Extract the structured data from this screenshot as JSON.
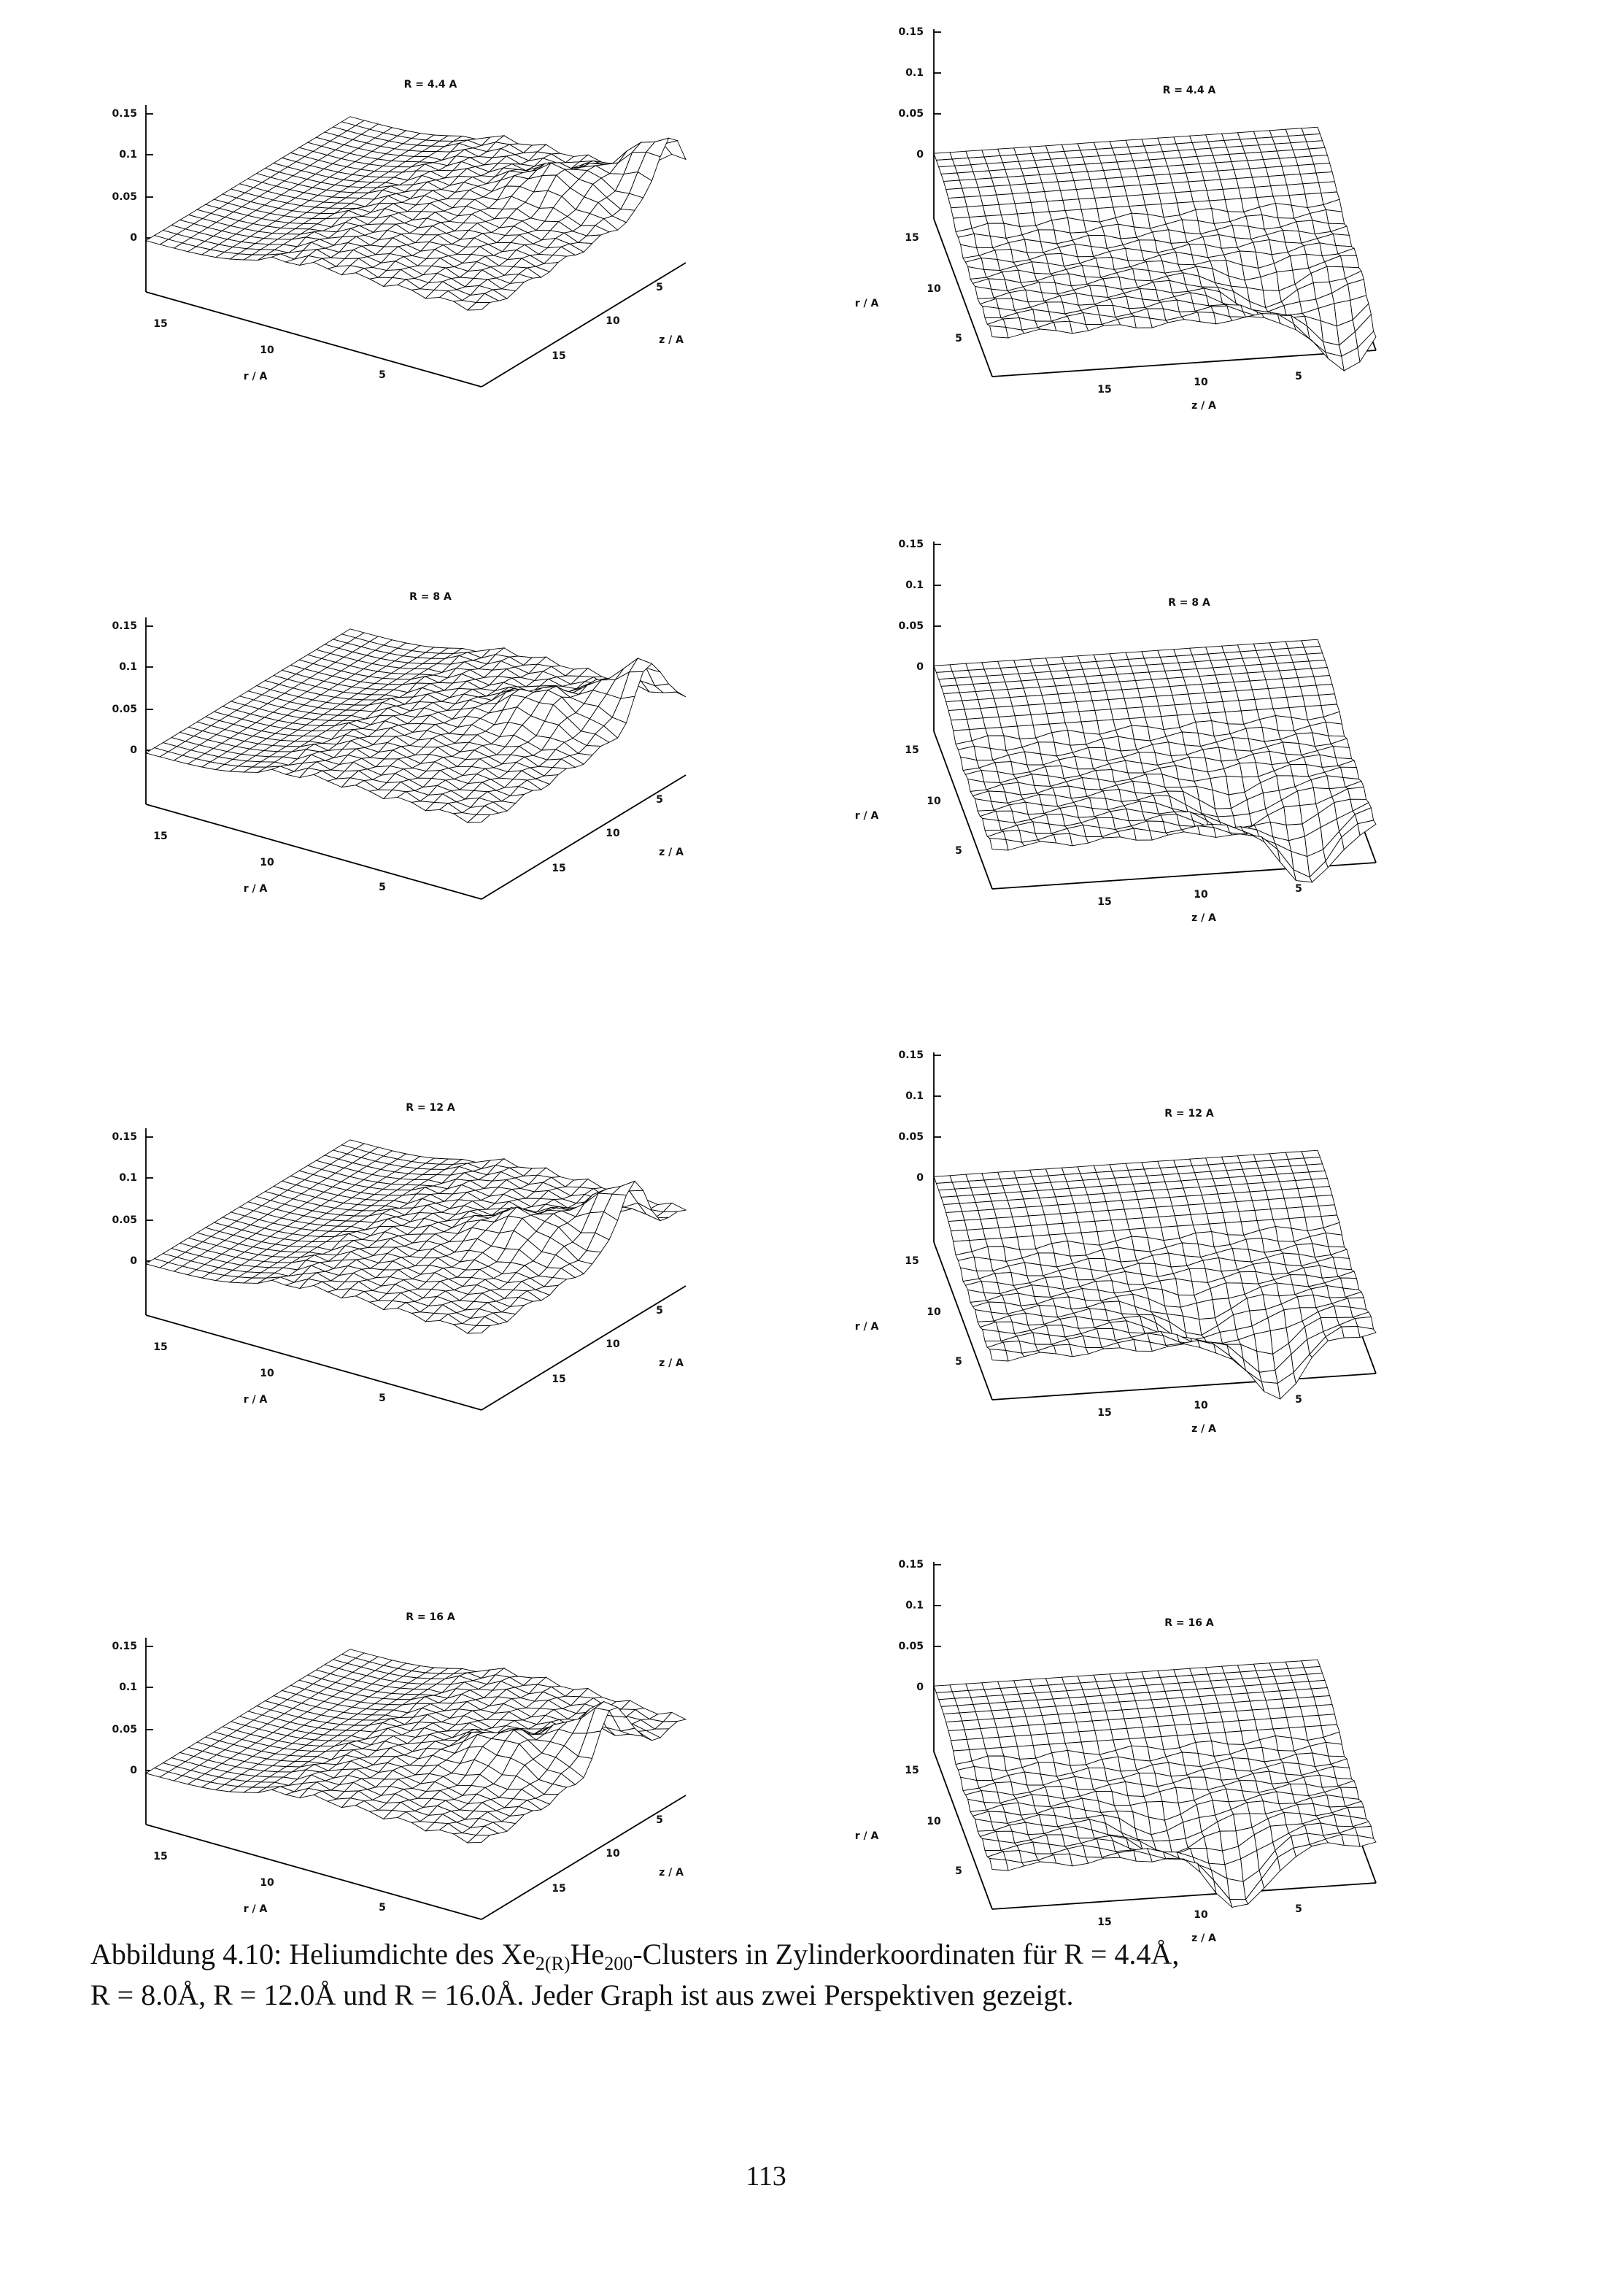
{
  "figure": {
    "rows": [
      {
        "left": {
          "title": "R = 4.4 A",
          "height_ticks": [
            "0.15",
            "0.1",
            "0.05",
            "0"
          ],
          "r_ticks": [
            "15",
            "10",
            "5"
          ],
          "r_label": "r / A",
          "z_ticks": [
            "5",
            "10",
            "15"
          ],
          "z_label": "z / A"
        },
        "right": {
          "title": "R = 4.4 A",
          "height_ticks": [
            "0.15",
            "0.1",
            "0.05",
            "0"
          ],
          "r_ticks": [
            "15",
            "10",
            "5"
          ],
          "r_label": "r / A",
          "z_ticks": [
            "15",
            "10",
            "5"
          ],
          "z_label": "z / A"
        }
      },
      {
        "left": {
          "title": "R = 8 A",
          "height_ticks": [
            "0.15",
            "0.1",
            "0.05",
            "0"
          ],
          "r_ticks": [
            "15",
            "10",
            "5"
          ],
          "r_label": "r / A",
          "z_ticks": [
            "5",
            "10",
            "15"
          ],
          "z_label": "z / A"
        },
        "right": {
          "title": "R = 8 A",
          "height_ticks": [
            "0.15",
            "0.1",
            "0.05",
            "0"
          ],
          "r_ticks": [
            "15",
            "10",
            "5"
          ],
          "r_label": "r / A",
          "z_ticks": [
            "15",
            "10",
            "5"
          ],
          "z_label": "z / A"
        }
      },
      {
        "left": {
          "title": "R = 12 A",
          "height_ticks": [
            "0.15",
            "0.1",
            "0.05",
            "0"
          ],
          "r_ticks": [
            "15",
            "10",
            "5"
          ],
          "r_label": "r / A",
          "z_ticks": [
            "5",
            "10",
            "15"
          ],
          "z_label": "z / A"
        },
        "right": {
          "title": "R = 12 A",
          "height_ticks": [
            "0.15",
            "0.1",
            "0.05",
            "0"
          ],
          "r_ticks": [
            "15",
            "10",
            "5"
          ],
          "r_label": "r / A",
          "z_ticks": [
            "15",
            "10",
            "5"
          ],
          "z_label": "z / A"
        }
      },
      {
        "left": {
          "title": "R = 16 A",
          "height_ticks": [
            "0.15",
            "0.1",
            "0.05",
            "0"
          ],
          "r_ticks": [
            "15",
            "10",
            "5"
          ],
          "r_label": "r / A",
          "z_ticks": [
            "5",
            "10",
            "15"
          ],
          "z_label": "z / A"
        },
        "right": {
          "title": "R = 16 A",
          "height_ticks": [
            "0.15",
            "0.1",
            "0.05",
            "0"
          ],
          "r_ticks": [
            "15",
            "10",
            "5"
          ],
          "r_label": "r / A",
          "z_ticks": [
            "15",
            "10",
            "5"
          ],
          "z_label": "z / A"
        }
      }
    ]
  },
  "caption": {
    "parts": [
      "Abbildung 4.10: Heliumdichte des Xe",
      "2(R)",
      "He",
      "200",
      "-Clusters in Zylinderkoordinaten für R = 4.4Å,",
      "R = 8.0Å, R = 12.0Å und R = 16.0Å. Jeder Graph ist aus zwei Perspektiven gezeigt."
    ]
  },
  "page_number": "113"
}
